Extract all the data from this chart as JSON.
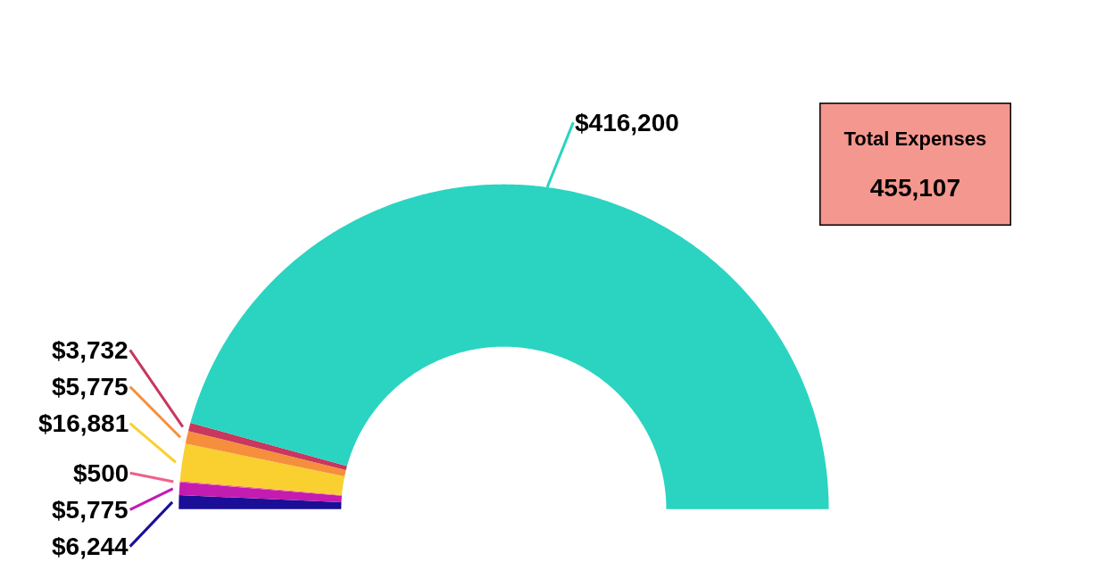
{
  "chart_data": {
    "type": "donut",
    "categories": [
      null,
      null,
      null,
      null,
      null,
      null,
      null
    ],
    "values": [
      6244,
      5775,
      500,
      16881,
      5775,
      3732,
      416200
    ],
    "colors": [
      "#1a0f96",
      "#c41bb0",
      "#f0608a",
      "#f9d030",
      "#f58f3c",
      "#c9365e",
      "#2ad4c0"
    ],
    "value_labels": [
      "$6,244",
      "$5,775",
      "$500",
      "$16,881",
      "$5,775",
      "$3,732",
      "$416,200"
    ],
    "annotations": [
      "Total Expenses",
      "455,107"
    ]
  }
}
